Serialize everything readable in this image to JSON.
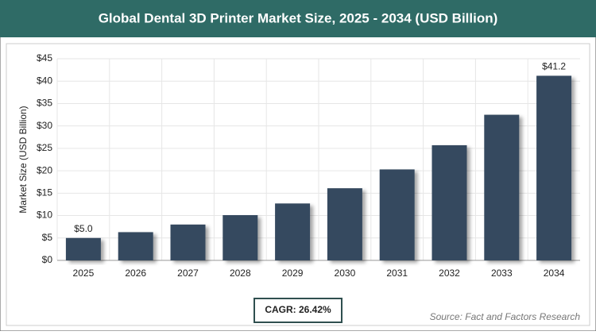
{
  "chart_data": {
    "type": "bar",
    "title": "Global Dental 3D Printer Market Size, 2025 - 2034 (USD Billion)",
    "y_label": "Market Size (USD Billion)",
    "categories": [
      "2025",
      "2026",
      "2027",
      "2028",
      "2029",
      "2030",
      "2031",
      "2032",
      "2033",
      "2034"
    ],
    "values": [
      5.0,
      6.3,
      8.0,
      10.1,
      12.7,
      16.1,
      20.3,
      25.7,
      32.5,
      41.2
    ],
    "value_labels": [
      "$5.0",
      null,
      null,
      null,
      null,
      null,
      null,
      null,
      null,
      "$41.2"
    ],
    "color": "#34495e",
    "ylim": [
      0,
      45
    ],
    "yticks": [
      {
        "value": 0,
        "label": "$0"
      },
      {
        "value": 5,
        "label": "$5"
      },
      {
        "value": 10,
        "label": "$10"
      },
      {
        "value": 15,
        "label": "$15"
      },
      {
        "value": 20,
        "label": "$20"
      },
      {
        "value": 25,
        "label": "$25"
      },
      {
        "value": 30,
        "label": "$30"
      },
      {
        "value": 35,
        "label": "$35"
      },
      {
        "value": 40,
        "label": "$40"
      },
      {
        "value": 45,
        "label": "$45"
      }
    ],
    "grid": true,
    "cagr": "CAGR: 26.42%",
    "source": "Source: Fact and Factors Research"
  }
}
